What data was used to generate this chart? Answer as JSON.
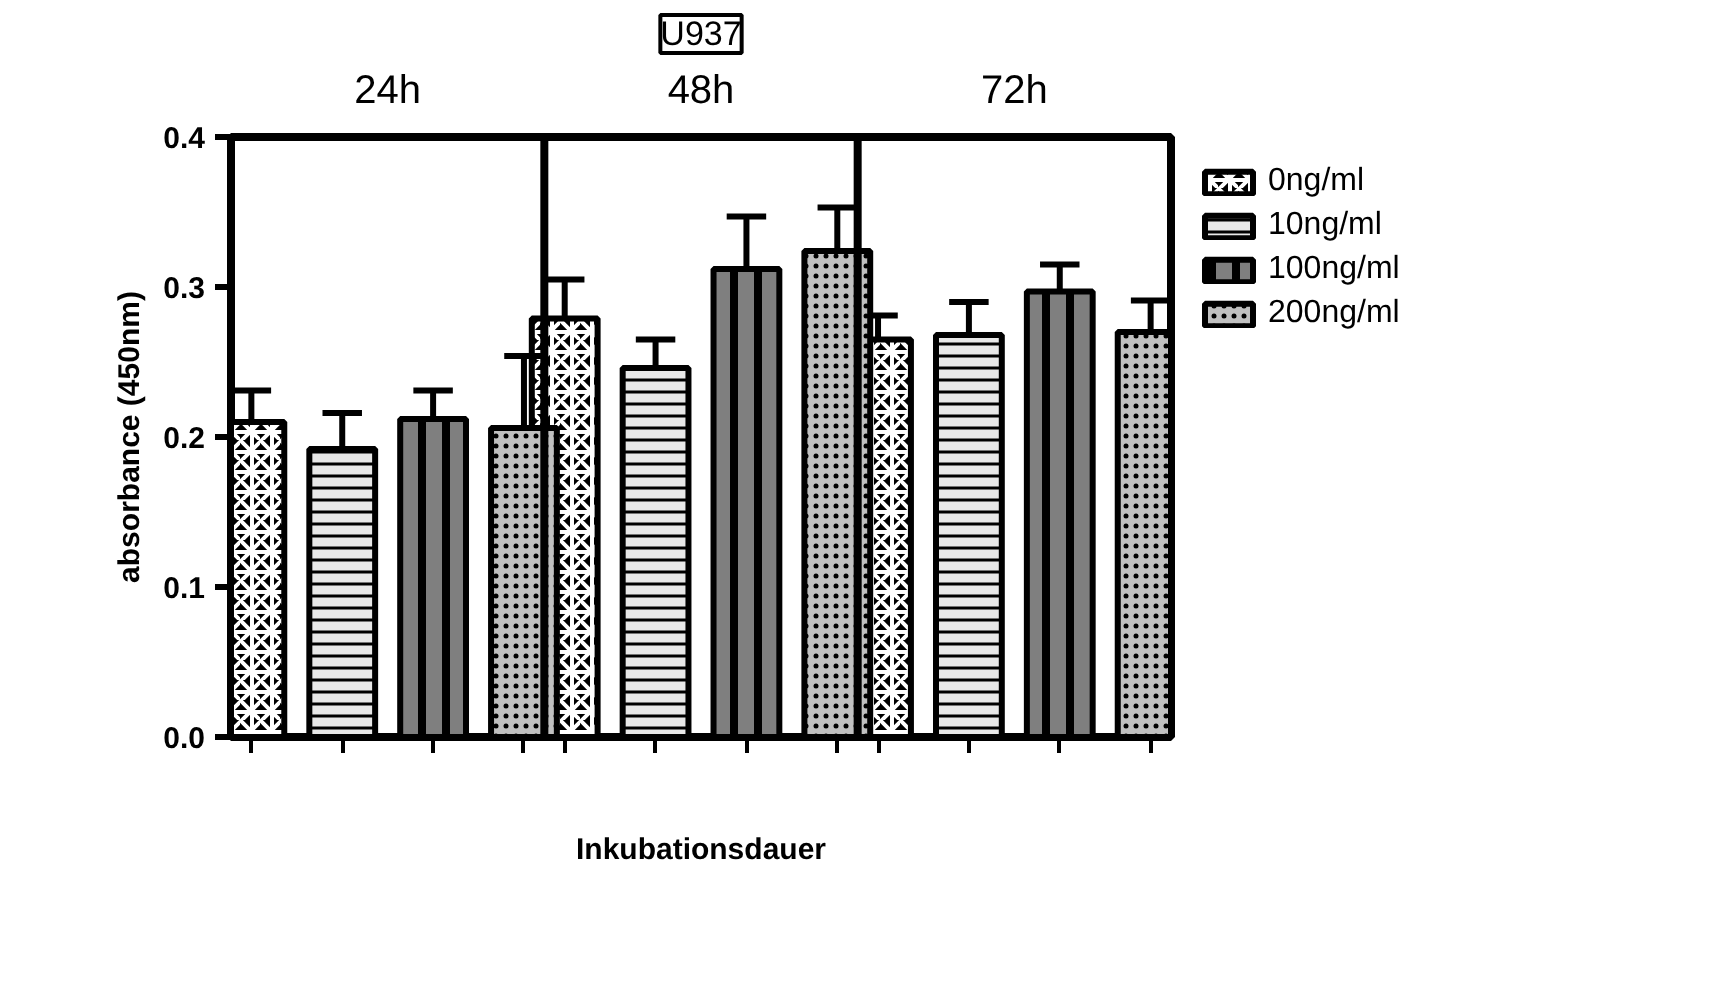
{
  "chart_data": {
    "type": "bar",
    "title": "U937",
    "xlabel": "Inkubationsdauer",
    "ylabel": "absorbance (450nm)",
    "categories": [
      "24h",
      "48h",
      "72h"
    ],
    "series": [
      {
        "name": "0ng/ml",
        "color": "#000000",
        "values": [
          0.21,
          0.279,
          0.265
        ],
        "errors": [
          0.021,
          0.026,
          0.016
        ]
      },
      {
        "name": "10ng/ml",
        "color": "#e8e8e8",
        "values": [
          0.192,
          0.246,
          0.268
        ],
        "errors": [
          0.024,
          0.019,
          0.022
        ]
      },
      {
        "name": "100ng/ml",
        "color": "#7f7f7f",
        "values": [
          0.212,
          0.312,
          0.297
        ],
        "errors": [
          0.019,
          0.035,
          0.018
        ]
      },
      {
        "name": "200ng/ml",
        "color": "#c0c0c0",
        "values": [
          0.206,
          0.324,
          0.27
        ],
        "errors": [
          0.048,
          0.029,
          0.021
        ]
      }
    ],
    "ylim": [
      0,
      0.4
    ],
    "yticks": [
      {
        "value": 0,
        "label": "0.0"
      },
      0.1,
      0.2,
      0.3,
      0.4
    ],
    "grid": false,
    "legend": "right"
  }
}
